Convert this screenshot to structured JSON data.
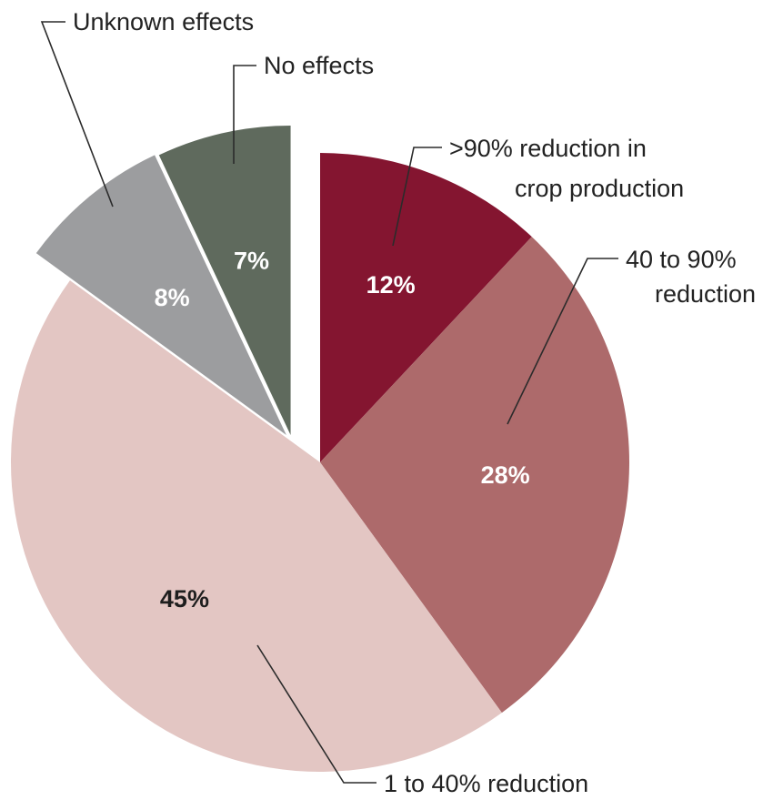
{
  "chart_data": {
    "type": "pie",
    "title": "",
    "slices": [
      {
        "label": ">90% reduction in crop production",
        "label_lines": [
          ">90% reduction in",
          "crop production"
        ],
        "value": 12,
        "value_label": "12%",
        "color": "#841530",
        "text_color": "#ffffff"
      },
      {
        "label": "40 to 90% reduction",
        "label_lines": [
          "40 to 90%",
          "reduction"
        ],
        "value": 28,
        "value_label": "28%",
        "color": "#ad6a6b",
        "text_color": "#ffffff"
      },
      {
        "label": "1 to 40% reduction",
        "label_lines": [
          "1 to 40% reduction"
        ],
        "value": 45,
        "value_label": "45%",
        "color": "#e3c6c3",
        "text_color": "#1e1e1e"
      },
      {
        "label": "Unknown effects",
        "label_lines": [
          "Unknown effects"
        ],
        "value": 8,
        "value_label": "8%",
        "color": "#9c9d9f",
        "text_color": "#ffffff",
        "exploded": true
      },
      {
        "label": "No effects",
        "label_lines": [
          "No effects"
        ],
        "value": 7,
        "value_label": "7%",
        "color": "#5f6a5d",
        "text_color": "#ffffff",
        "exploded": true
      }
    ]
  }
}
